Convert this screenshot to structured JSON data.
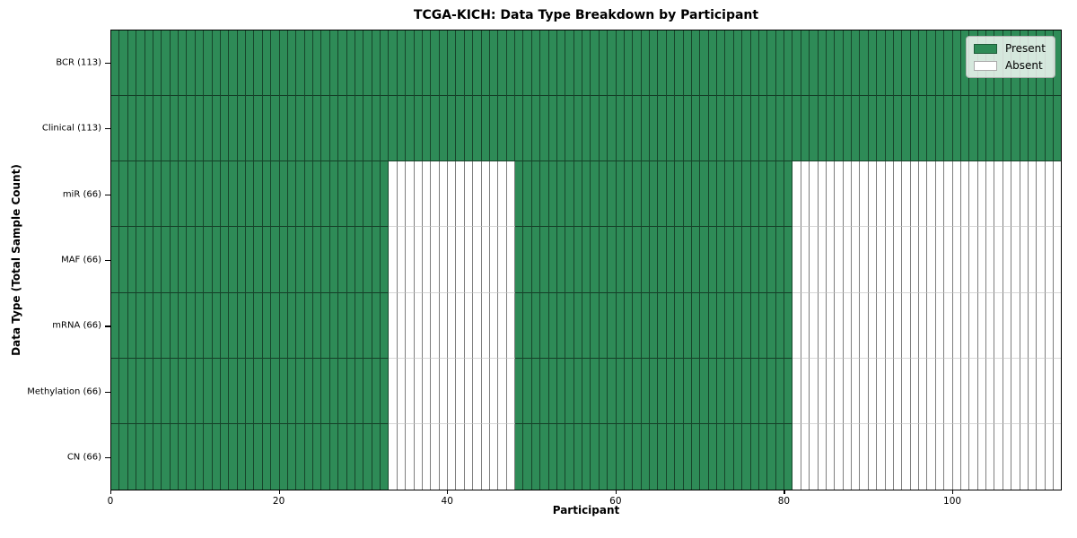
{
  "chart_data": {
    "type": "heatmap",
    "title": "TCGA-KICH: Data Type Breakdown by Participant",
    "xlabel": "Participant",
    "ylabel": "Data Type (Total Sample Count)",
    "x_range": [
      0,
      113
    ],
    "n_participants": 113,
    "x_ticks": [
      0,
      20,
      40,
      60,
      80,
      100
    ],
    "grid": "cell-edges",
    "rows": [
      {
        "label": "BCR (113)",
        "total": 113,
        "present_segments": [
          [
            0,
            113
          ]
        ]
      },
      {
        "label": "Clinical (113)",
        "total": 113,
        "present_segments": [
          [
            0,
            113
          ]
        ]
      },
      {
        "label": "miR (66)",
        "total": 66,
        "present_segments": [
          [
            0,
            33
          ],
          [
            48,
            81
          ]
        ]
      },
      {
        "label": "MAF (66)",
        "total": 66,
        "present_segments": [
          [
            0,
            33
          ],
          [
            48,
            81
          ]
        ]
      },
      {
        "label": "mRNA (66)",
        "total": 66,
        "present_segments": [
          [
            0,
            33
          ],
          [
            48,
            81
          ]
        ]
      },
      {
        "label": "Methylation (66)",
        "total": 66,
        "present_segments": [
          [
            0,
            33
          ],
          [
            48,
            81
          ]
        ]
      },
      {
        "label": "CN (66)",
        "total": 66,
        "present_segments": [
          [
            0,
            33
          ],
          [
            48,
            81
          ]
        ]
      }
    ],
    "legend": {
      "position": "upper right",
      "items": [
        {
          "label": "Present",
          "color": "#2e8b57",
          "edge": "#1e5c39"
        },
        {
          "label": "Absent",
          "color": "#ffffff",
          "edge": "#aaaaaa"
        }
      ]
    },
    "colors": {
      "present": "#2e8b57",
      "absent": "#ffffff",
      "spine": "#000000"
    }
  }
}
